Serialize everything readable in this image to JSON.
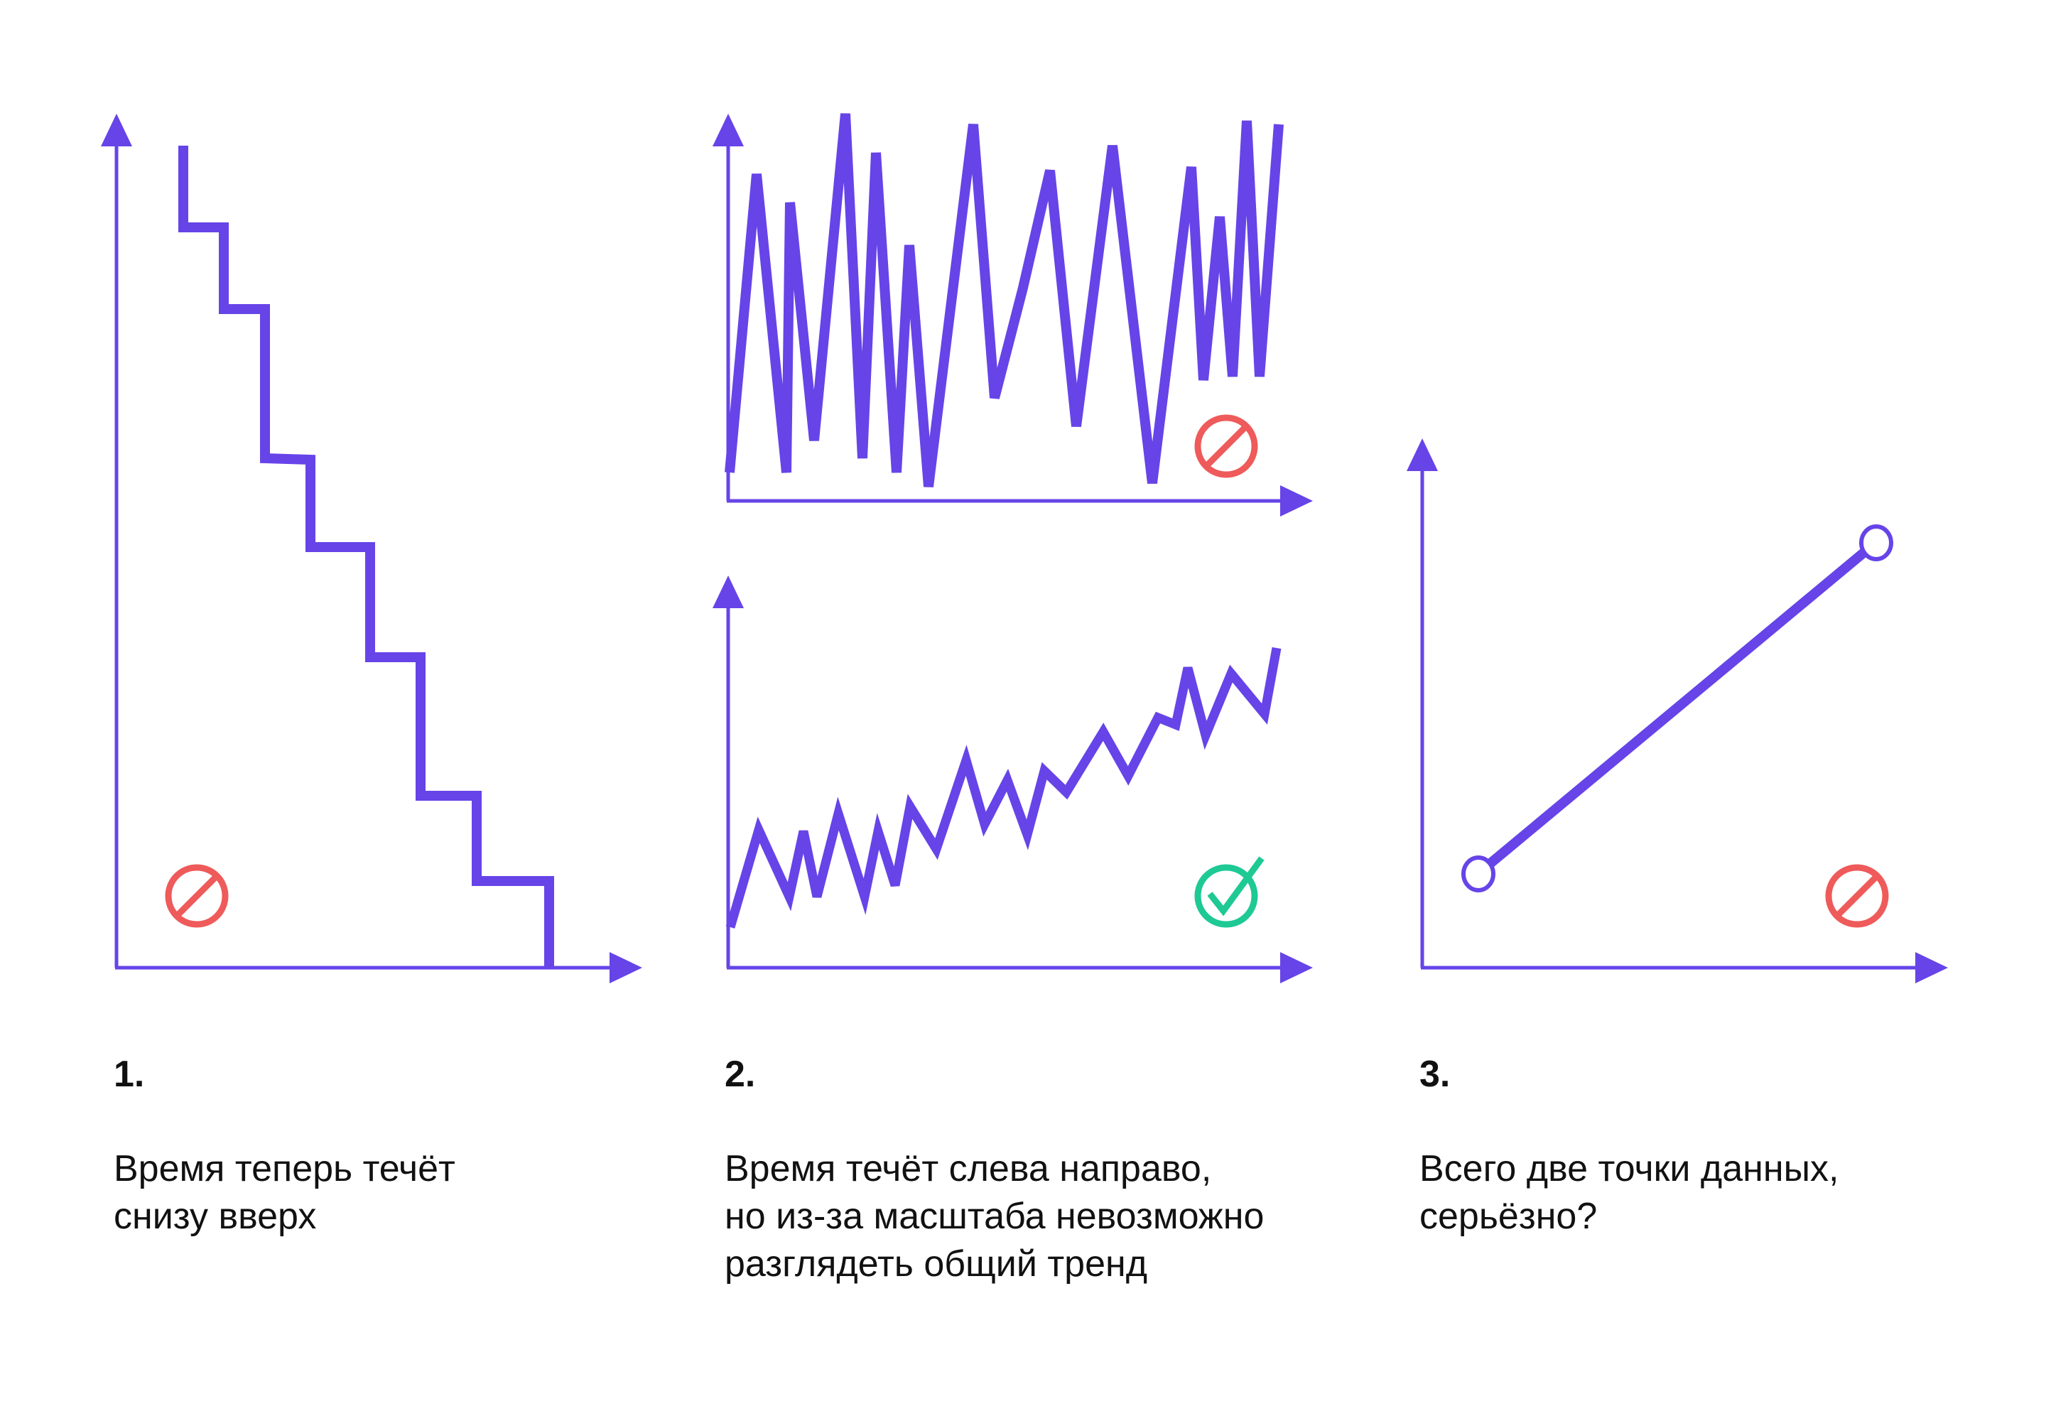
{
  "colors": {
    "line": "#6644e8",
    "forbidden": "#ef5a5a",
    "ok": "#1ec994",
    "text": "#111111"
  },
  "icons": {
    "panel1": "forbidden-icon",
    "panel2_top": "forbidden-icon",
    "panel2_bottom": "checkmark-icon",
    "panel3": "forbidden-icon"
  },
  "captions": [
    {
      "number": "1.",
      "lines": [
        "Время теперь течёт",
        "снизу вверх"
      ]
    },
    {
      "number": "2.",
      "lines": [
        "Время течёт слева направо,",
        "но из-за масштаба невозможно",
        "разглядеть общий тренд"
      ]
    },
    {
      "number": "3.",
      "lines": [
        "Всего две точки данных,",
        "серьёзно?"
      ]
    }
  ]
}
